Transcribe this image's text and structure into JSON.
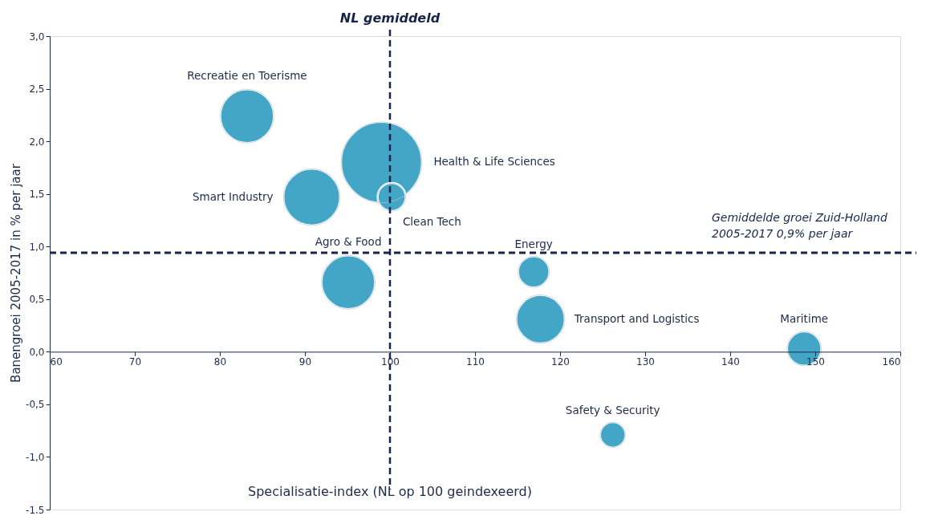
{
  "chart_data": {
    "type": "bubble",
    "xlabel": "Specialisatie-index (NL op 100 geindexeerd)",
    "ylabel": "Banengroei 2005-2017 in % per jaar",
    "series": [
      {
        "color": "#44a6c6",
        "x": [
          83.2,
          99.0,
          90.8,
          100.2,
          95.1,
          116.9,
          117.7,
          148.7,
          126.2
        ],
        "values": [
          2.24,
          1.8,
          1.47,
          1.47,
          0.66,
          0.76,
          0.31,
          0.03,
          -0.79
        ],
        "sizes": [
          0.44,
          1,
          0.49,
          0.12,
          0.44,
          0.15,
          0.36,
          0.18,
          0.1
        ]
      }
    ],
    "annotations": [
      "Recreatie en Toerisme",
      "Health & Life Sciences",
      "Smart Industry",
      "Clean Tech",
      "Agro & Food",
      "Energy",
      "Transport and Logistics",
      "Maritime",
      "Safety & Security"
    ],
    "ref_lines": [
      {
        "axis": "x",
        "value": 100,
        "label": "NL gemiddeld",
        "color": "#16264a",
        "line_style": "dashed"
      },
      {
        "axis": "y",
        "value": 0.94,
        "label": "Gemiddelde groei Zuid-Holland\n2005-2017 0,9% per jaar",
        "color": "#16264a",
        "line_style": "dashed"
      }
    ],
    "xlim": [
      60,
      160
    ],
    "xticks": [
      60,
      70,
      80,
      90,
      100,
      110,
      120,
      130,
      140,
      150,
      160
    ],
    "ylim": [
      -1.5,
      3.0
    ],
    "yticks": [
      {
        "value": -1.5,
        "label": "-1,5"
      },
      {
        "value": -1.0,
        "label": "-1,0"
      },
      {
        "value": -0.5,
        "label": "-0,5"
      },
      {
        "value": 0,
        "label": "0,0"
      },
      {
        "value": 0.5,
        "label": "0,5"
      },
      {
        "value": 1.0,
        "label": "1,0"
      },
      {
        "value": 1.5,
        "label": "1,5"
      },
      {
        "value": 2.0,
        "label": "2,0"
      },
      {
        "value": 2.5,
        "label": "2,5"
      },
      {
        "value": 3.0,
        "label": "3,0"
      }
    ],
    "grid": false,
    "legend": false
  }
}
